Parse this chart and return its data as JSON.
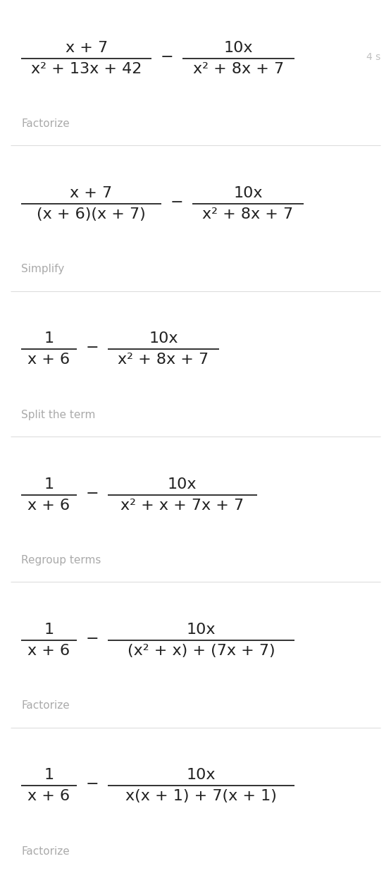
{
  "bg_color": "#ffffff",
  "text_color": "#222222",
  "label_color": "#aaaaaa",
  "line_color": "#dddddd",
  "annotation_color": "#c0c0c0",
  "fig_width": 5.55,
  "fig_height": 12.38,
  "dpi": 100,
  "steps": [
    {
      "num1": "x + 7",
      "den1": "x² + 13x + 42",
      "num2": "10x",
      "den2": "x² + 8x + 7",
      "label": "Factorize",
      "annotation": "4 s"
    },
    {
      "num1": "x + 7",
      "den1": "(x + 6)(x + 7)",
      "num2": "10x",
      "den2": "x² + 8x + 7",
      "label": "Simplify"
    },
    {
      "num1": "1",
      "den1": "x + 6",
      "num2": "10x",
      "den2": "x² + 8x + 7",
      "label": "Split the term"
    },
    {
      "num1": "1",
      "den1": "x + 6",
      "num2": "10x",
      "den2": "x² + x + 7x + 7",
      "label": "Regroup terms"
    },
    {
      "num1": "1",
      "den1": "x + 6",
      "num2": "10x",
      "den2": "(x² + x) + (7x + 7)",
      "label": "Factorize"
    },
    {
      "num1": "1",
      "den1": "x + 6",
      "num2": "10x",
      "den2": "x(x + 1) + 7(x + 1)",
      "label": "Factorize"
    }
  ],
  "fs_expr": 16,
  "fs_label": 11,
  "fs_annot": 10
}
